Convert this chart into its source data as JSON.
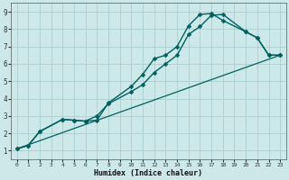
{
  "xlabel": "Humidex (Indice chaleur)",
  "xlim": [
    -0.5,
    23.5
  ],
  "ylim": [
    0.5,
    9.5
  ],
  "xticks": [
    0,
    1,
    2,
    3,
    4,
    5,
    6,
    7,
    8,
    9,
    10,
    11,
    12,
    13,
    14,
    15,
    16,
    17,
    18,
    19,
    20,
    21,
    22,
    23
  ],
  "yticks": [
    1,
    2,
    3,
    4,
    5,
    6,
    7,
    8,
    9
  ],
  "bg_color": "#cce8e8",
  "grid_color": "#aacfcf",
  "line_color": "#006060",
  "series": [
    {
      "x": [
        0,
        1,
        2,
        4,
        5,
        6,
        7,
        8,
        10,
        11,
        12,
        13,
        14,
        15,
        16,
        17,
        18,
        20,
        21,
        22,
        23
      ],
      "y": [
        1.1,
        1.3,
        2.1,
        2.8,
        2.75,
        2.7,
        2.75,
        3.75,
        4.7,
        5.4,
        6.3,
        6.5,
        7.0,
        8.2,
        8.85,
        8.9,
        8.5,
        7.85,
        7.5,
        6.5,
        6.5
      ],
      "has_marker": true,
      "markersize": 2.5,
      "linewidth": 1.0
    },
    {
      "x": [
        0,
        1,
        2,
        4,
        5,
        6,
        7,
        8,
        10,
        11,
        12,
        13,
        14,
        15,
        16,
        17,
        18,
        20,
        21,
        22,
        23
      ],
      "y": [
        1.1,
        1.3,
        2.1,
        2.8,
        2.75,
        2.7,
        3.0,
        3.7,
        4.4,
        4.8,
        5.5,
        6.0,
        6.5,
        7.7,
        8.15,
        8.8,
        8.85,
        7.85,
        7.5,
        6.5,
        6.5
      ],
      "has_marker": true,
      "markersize": 2.5,
      "linewidth": 1.0
    },
    {
      "x": [
        0,
        23
      ],
      "y": [
        1.1,
        6.5
      ],
      "has_marker": false,
      "markersize": 0,
      "linewidth": 0.9
    }
  ]
}
